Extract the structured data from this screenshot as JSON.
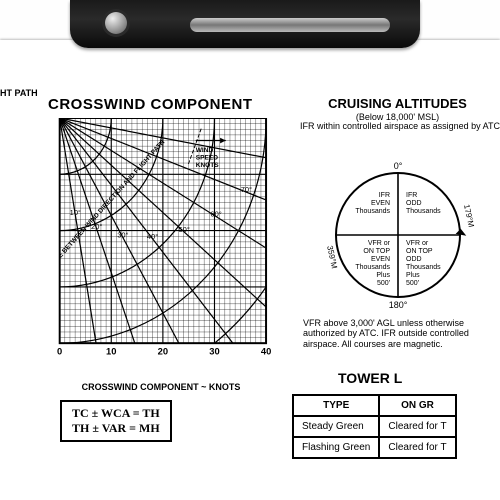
{
  "edge_label": "HT PATH",
  "crosswind": {
    "title": "CROSSWIND COMPONENT",
    "xaxis_label": "CROSSWIND COMPONENT ~ KNOTS",
    "angle_axis_label": "ANGLE BETWEEN WIND DIRECTION AND FLIGHT PATH",
    "wind_speed_label_1": "WIND",
    "wind_speed_label_2": "SPEED",
    "wind_speed_label_3": "KNOTS",
    "chart": {
      "width_units": 40,
      "height_units": 40,
      "grid_step": 1,
      "major_step": 10,
      "x_ticks": [
        0,
        10,
        20,
        30,
        40
      ],
      "angle_lines_deg": [
        10,
        20,
        30,
        40,
        50,
        60,
        70,
        80,
        90
      ],
      "speed_arcs": [
        10,
        20,
        30,
        40,
        50,
        60
      ],
      "line_color": "#000",
      "grid_color": "#000",
      "bg_color": "#fff",
      "tick_fontsize": 10,
      "angle_label_fontsize": 8
    }
  },
  "formulas": {
    "line1": "TC  ±  WCA  =  TH",
    "line2": "TH  ±  VAR  =  MH"
  },
  "cruising": {
    "title": "CRUISING ALTITUDES",
    "sub": "(Below 18,000' MSL)",
    "sub2": "IFR within controlled airspace as assigned by ATC",
    "dial": {
      "north": "0°",
      "south": "180°",
      "east_label": "179°M",
      "west_label": "359°M",
      "left_top": "IFR\nEVEN\nThousands",
      "left_bot": "VFR or\nON TOP\nEVEN\nThousands\nPlus\n500'",
      "right_top": "IFR\nODD\nThousands",
      "right_bot": "VFR or\nON TOP\nODD\nThousands\nPlus\n500'",
      "circle_color": "#000",
      "fontsize": 7
    },
    "note": "VFR above 3,000' AGL unless otherwise authorized by ATC. IFR outside controlled airspace. All courses are magnetic."
  },
  "tower": {
    "title": "TOWER L",
    "col1": "TYPE",
    "col2": "ON GR",
    "rows": [
      {
        "type": "Steady Green",
        "ground": "Cleared for T"
      },
      {
        "type": "Flashing Green",
        "ground": "Cleared for T"
      }
    ]
  }
}
